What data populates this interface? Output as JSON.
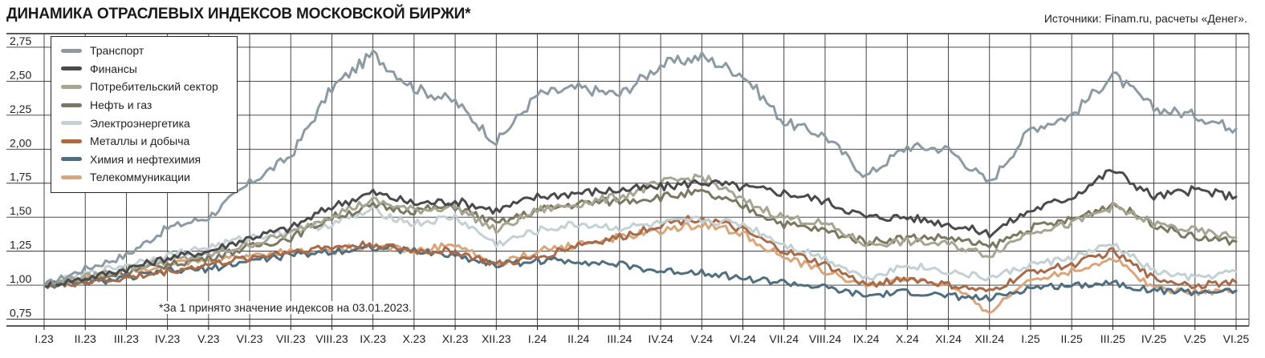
{
  "title": "ДИНАМИКА ОТРАСЛЕВЫХ ИНДЕКСОВ МОСКОВСКОЙ БИРЖИ*",
  "source": "Источники: Finam.ru, расчеты «Денег».",
  "footnote": "*За 1 принято значение индексов на 03.01.2023.",
  "chart_data": {
    "type": "line",
    "ylim": [
      0.7,
      2.85
    ],
    "yticks": [
      "0,75",
      "1,00",
      "1,25",
      "1,50",
      "1,75",
      "2,00",
      "2,25",
      "2,50",
      "2,75"
    ],
    "ytick_values": [
      0.75,
      1.0,
      1.25,
      1.5,
      1.75,
      2.0,
      2.25,
      2.5,
      2.75
    ],
    "categories": [
      "I.23",
      "II.23",
      "III.23",
      "IV.23",
      "V.23",
      "VI.23",
      "VII.23",
      "VIII.23",
      "IX.23",
      "X.23",
      "XI.23",
      "XII.23",
      "I.24",
      "II.24",
      "III.24",
      "IV.24",
      "V.24",
      "VI.24",
      "VII.24",
      "VIII.24",
      "IX.24",
      "X.24",
      "XI.24",
      "XII.24",
      "I.25",
      "II.25",
      "III.25",
      "IV.25",
      "V.25",
      "VI.25"
    ],
    "grid": true,
    "legend": "top-left",
    "series": [
      {
        "name": "Транспорт",
        "color": "#8c9ba3",
        "values": [
          1.0,
          1.12,
          1.22,
          1.42,
          1.5,
          1.75,
          1.95,
          2.45,
          2.7,
          2.45,
          2.35,
          2.05,
          2.4,
          2.45,
          2.4,
          2.62,
          2.68,
          2.55,
          2.2,
          2.1,
          1.8,
          2.02,
          2.0,
          1.75,
          2.15,
          2.25,
          2.55,
          2.3,
          2.25,
          2.15
        ]
      },
      {
        "name": "Финансы",
        "color": "#4a4a4c",
        "values": [
          1.0,
          1.05,
          1.12,
          1.2,
          1.25,
          1.35,
          1.42,
          1.58,
          1.68,
          1.6,
          1.62,
          1.55,
          1.65,
          1.68,
          1.7,
          1.72,
          1.76,
          1.72,
          1.68,
          1.62,
          1.5,
          1.5,
          1.45,
          1.38,
          1.55,
          1.65,
          1.85,
          1.65,
          1.7,
          1.65
        ]
      },
      {
        "name": "Потребительский сектор",
        "color": "#a6a592",
        "values": [
          1.0,
          1.06,
          1.12,
          1.18,
          1.22,
          1.3,
          1.38,
          1.52,
          1.62,
          1.55,
          1.58,
          1.4,
          1.55,
          1.6,
          1.65,
          1.75,
          1.8,
          1.62,
          1.5,
          1.45,
          1.3,
          1.32,
          1.3,
          1.22,
          1.4,
          1.45,
          1.58,
          1.45,
          1.4,
          1.35
        ]
      },
      {
        "name": "Нефть и газ",
        "color": "#7b7861",
        "values": [
          1.0,
          1.03,
          1.1,
          1.15,
          1.2,
          1.28,
          1.35,
          1.5,
          1.58,
          1.55,
          1.58,
          1.45,
          1.55,
          1.6,
          1.62,
          1.65,
          1.68,
          1.58,
          1.45,
          1.4,
          1.32,
          1.35,
          1.35,
          1.28,
          1.42,
          1.48,
          1.6,
          1.45,
          1.35,
          1.32
        ]
      },
      {
        "name": "Электроэнергетика",
        "color": "#c3d0d4",
        "values": [
          1.0,
          1.08,
          1.15,
          1.22,
          1.28,
          1.35,
          1.4,
          1.45,
          1.55,
          1.45,
          1.5,
          1.3,
          1.4,
          1.45,
          1.42,
          1.45,
          1.48,
          1.45,
          1.3,
          1.2,
          1.05,
          1.15,
          1.1,
          1.05,
          1.15,
          1.2,
          1.3,
          1.1,
          1.05,
          1.1
        ]
      },
      {
        "name": "Металлы и добыча",
        "color": "#a86b4a",
        "values": [
          1.0,
          1.02,
          1.05,
          1.1,
          1.15,
          1.2,
          1.25,
          1.28,
          1.3,
          1.25,
          1.25,
          1.15,
          1.2,
          1.3,
          1.35,
          1.45,
          1.5,
          1.4,
          1.25,
          1.15,
          1.0,
          1.05,
          1.0,
          0.95,
          1.1,
          1.15,
          1.25,
          1.05,
          1.0,
          1.02
        ]
      },
      {
        "name": "Химия и нефтехимия",
        "color": "#4f6e80",
        "values": [
          1.0,
          1.02,
          1.05,
          1.1,
          1.12,
          1.18,
          1.22,
          1.25,
          1.28,
          1.25,
          1.22,
          1.15,
          1.18,
          1.18,
          1.15,
          1.1,
          1.1,
          1.05,
          1.02,
          0.98,
          0.92,
          0.95,
          0.92,
          0.9,
          0.98,
          1.0,
          1.02,
          0.96,
          0.95,
          0.96
        ]
      },
      {
        "name": "Телекоммуникации",
        "color": "#d9a57b",
        "values": [
          1.0,
          1.05,
          1.1,
          1.15,
          1.18,
          1.22,
          1.25,
          1.25,
          1.3,
          1.25,
          1.3,
          1.15,
          1.25,
          1.3,
          1.35,
          1.4,
          1.45,
          1.38,
          1.2,
          1.1,
          1.0,
          1.05,
          1.0,
          0.8,
          1.05,
          1.1,
          1.2,
          0.98,
          0.95,
          0.96
        ]
      }
    ]
  }
}
